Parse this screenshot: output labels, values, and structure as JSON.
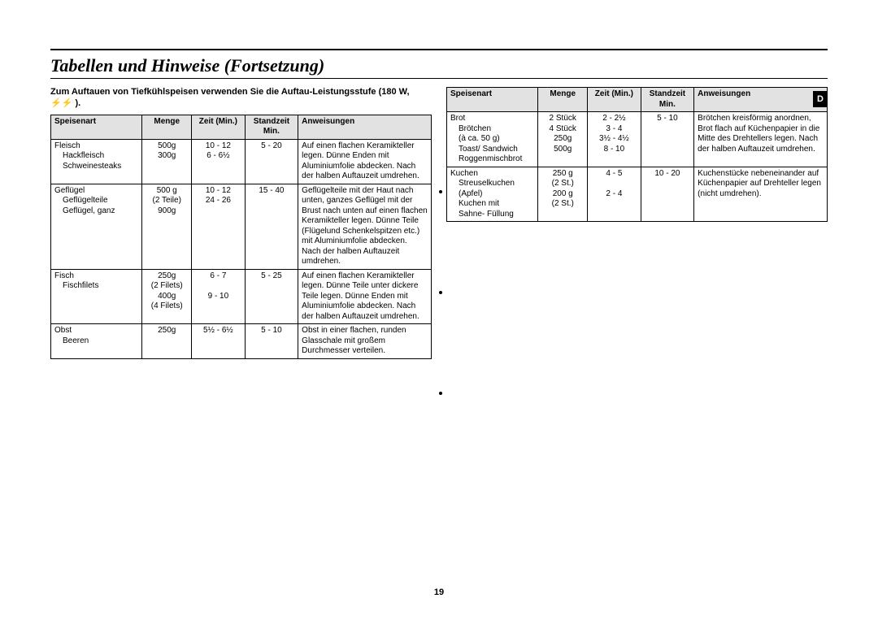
{
  "title": "Tabellen und Hinweise (Fortsetzung)",
  "intro": "Zum Auftauen von Tiefkühlspeisen verwenden Sie die Auftau-Leistungsstufe (180 W, ⚡⚡ ).",
  "pageNumber": "19",
  "sideMark": "D",
  "headers": {
    "c1": "Speisenart",
    "c2": "Menge",
    "c3": "Zeit (Min.)",
    "c4": "Standzeit Min.",
    "c5": "Anweisungen"
  },
  "left": [
    {
      "cat": "Fleisch",
      "rows": [
        {
          "name": "Hackfleisch",
          "menge": "500g",
          "zeit": "10  -  12",
          "stand": "5 - 20",
          "anw": "Auf einen flachen Keramikteller legen. Dünne Enden mit Aluminiumfolie abdecken. Nach der halben Auftauzeit umdrehen."
        },
        {
          "name": "Schweinesteaks",
          "menge": "300g",
          "zeit": "6  -  6½",
          "stand": "",
          "anw": ""
        }
      ]
    },
    {
      "cat": "Geflügel",
      "rows": [
        {
          "name": "Geflügelteile",
          "menge": "500 g\n(2 Teile)",
          "zeit": "10  - 12",
          "stand": "15 - 40",
          "anw": "Geflügelteile mit der Haut nach unten, ganzes Geflügel mit der Brust nach unten auf einen flachen Keramikteller legen. Dünne Teile (Flügelund Schenkelspitzen etc.) mit Aluminiumfolie abdecken. Nach der halben Auftauzeit umdrehen."
        },
        {
          "name": "Geflügel, ganz",
          "menge": "900g",
          "zeit": "24  - 26",
          "stand": "",
          "anw": ""
        }
      ]
    },
    {
      "cat": "Fisch",
      "rows": [
        {
          "name": "Fischfilets",
          "menge": "250g\n(2 Filets)\n400g\n(4 Filets)",
          "zeit": "6 - 7\n\n9  -  10",
          "stand": "5 - 25",
          "anw": "Auf einen flachen Keramikteller legen. Dünne Teile unter dickere Teile legen. Dünne Enden mit Aluminiumfolie abdecken. Nach der halben Auftauzeit umdrehen."
        }
      ]
    },
    {
      "cat": "Obst",
      "rows": [
        {
          "name": "Beeren",
          "menge": "250g",
          "zeit": "5½  -  6½",
          "stand": "5  -  10",
          "anw": "Obst in einer flachen, runden Glasschale mit großem Durchmesser verteilen."
        }
      ]
    }
  ],
  "right": [
    {
      "cat": "Brot",
      "rows": [
        {
          "name": "Brötchen\n(à ca. 50 g)\nToast/ Sandwich\nRoggenmischbrot",
          "menge": "2 Stück\n4 Stück\n250g\n500g",
          "zeit": "2  -  2½\n3 - 4\n3½  -  4½\n8  -  10",
          "stand": "5  -  10",
          "anw": "Brötchen kreisförmig anordnen, Brot flach auf Küchenpapier in die Mitte des Drehtellers legen. Nach der halben Auftauzeit umdrehen."
        }
      ]
    },
    {
      "cat": "Kuchen",
      "rows": [
        {
          "name": "Streuselkuchen\n(Apfel)\nKuchen mit\nSahne- Füllung",
          "menge": "250 g\n(2 St.)\n200 g\n(2 St.)",
          "zeit": "4 - 5\n\n2 - 4",
          "stand": "10  -  20",
          "anw": "Kuchenstücke nebeneinander auf Küchenpapier auf Drehteller legen (nicht umdrehen)."
        }
      ]
    }
  ]
}
